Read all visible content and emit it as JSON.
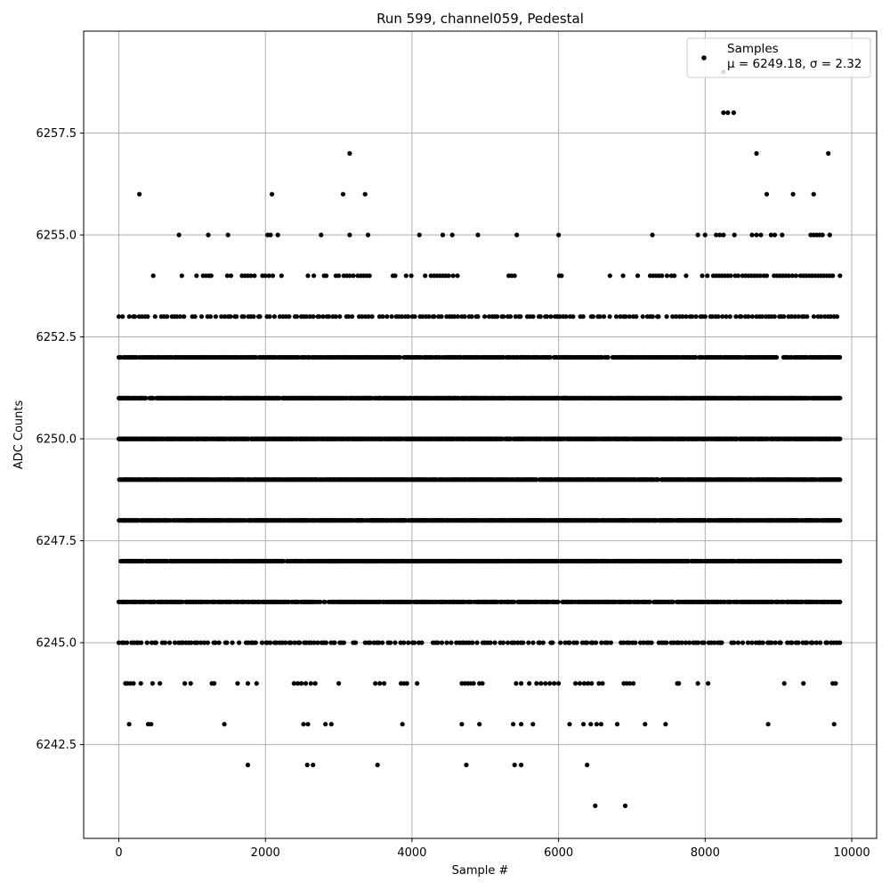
{
  "chart_data": {
    "type": "scatter",
    "title": "Run 599, channel059, Pedestal",
    "xlabel": "Sample #",
    "ylabel": "ADC Counts",
    "xlim": [
      -480,
      10340
    ],
    "ylim": [
      6240.2,
      6260.0
    ],
    "xticks": [
      0,
      2000,
      4000,
      6000,
      8000,
      10000
    ],
    "xtick_labels": [
      "0",
      "2000",
      "4000",
      "6000",
      "8000",
      "10000"
    ],
    "yticks": [
      6242.5,
      6245.0,
      6247.5,
      6250.0,
      6252.5,
      6255.0,
      6257.5
    ],
    "ytick_labels": [
      "6242.5",
      "6245.0",
      "6247.5",
      "6250.0",
      "6252.5",
      "6255.0",
      "6257.5"
    ],
    "grid": true,
    "legend": {
      "placement": "top-right",
      "entries": [
        "Samples",
        "μ = 6249.18, σ = 2.32"
      ]
    },
    "marker_color": "#000000",
    "series": [
      {
        "name": "Samples",
        "x_range": [
          0,
          9840
        ],
        "dense_levels": [
          {
            "y": 6245,
            "from": 0,
            "to": 9840,
            "step": 40
          },
          {
            "y": 6246,
            "from": 0,
            "to": 9840,
            "step": 16
          },
          {
            "y": 6247,
            "from": 0,
            "to": 9840,
            "step": 12
          },
          {
            "y": 6248,
            "from": 0,
            "to": 9840,
            "step": 10
          },
          {
            "y": 6249,
            "from": 0,
            "to": 9840,
            "step": 10
          },
          {
            "y": 6250,
            "from": 0,
            "to": 9840,
            "step": 10
          },
          {
            "y": 6251,
            "from": 0,
            "to": 9840,
            "step": 10
          },
          {
            "y": 6252,
            "from": 0,
            "to": 9840,
            "step": 16
          },
          {
            "y": 6253,
            "from": 0,
            "to": 9840,
            "step": 45
          }
        ],
        "points": [
          {
            "x": 280,
            "y": 6256
          },
          {
            "x": 2090,
            "y": 6256
          },
          {
            "x": 3060,
            "y": 6256
          },
          {
            "x": 3360,
            "y": 6256
          },
          {
            "x": 8840,
            "y": 6256
          },
          {
            "x": 9200,
            "y": 6256
          },
          {
            "x": 9480,
            "y": 6256
          },
          {
            "x": 3150,
            "y": 6257
          },
          {
            "x": 8700,
            "y": 6257
          },
          {
            "x": 9680,
            "y": 6257
          },
          {
            "x": 8250,
            "y": 6258
          },
          {
            "x": 8310,
            "y": 6258
          },
          {
            "x": 8390,
            "y": 6258
          },
          {
            "x": 8250,
            "y": 6259
          },
          {
            "x": 820,
            "y": 6255
          },
          {
            "x": 1220,
            "y": 6255
          },
          {
            "x": 1490,
            "y": 6255
          },
          {
            "x": 2030,
            "y": 6255
          },
          {
            "x": 2070,
            "y": 6255
          },
          {
            "x": 2170,
            "y": 6255
          },
          {
            "x": 2760,
            "y": 6255
          },
          {
            "x": 3150,
            "y": 6255
          },
          {
            "x": 3400,
            "y": 6255
          },
          {
            "x": 4100,
            "y": 6255
          },
          {
            "x": 4420,
            "y": 6255
          },
          {
            "x": 4550,
            "y": 6255
          },
          {
            "x": 4900,
            "y": 6255
          },
          {
            "x": 5430,
            "y": 6255
          },
          {
            "x": 6000,
            "y": 6255
          },
          {
            "x": 7280,
            "y": 6255
          },
          {
            "x": 7900,
            "y": 6255
          },
          {
            "x": 8000,
            "y": 6255
          },
          {
            "x": 8150,
            "y": 6255
          },
          {
            "x": 8200,
            "y": 6255
          },
          {
            "x": 8250,
            "y": 6255
          },
          {
            "x": 8400,
            "y": 6255
          },
          {
            "x": 8640,
            "y": 6255
          },
          {
            "x": 8700,
            "y": 6255
          },
          {
            "x": 8760,
            "y": 6255
          },
          {
            "x": 8900,
            "y": 6255
          },
          {
            "x": 8950,
            "y": 6255
          },
          {
            "x": 9050,
            "y": 6255
          },
          {
            "x": 9440,
            "y": 6255
          },
          {
            "x": 9480,
            "y": 6255
          },
          {
            "x": 9520,
            "y": 6255
          },
          {
            "x": 9560,
            "y": 6255
          },
          {
            "x": 9600,
            "y": 6255
          },
          {
            "x": 9700,
            "y": 6255
          },
          {
            "x": 140,
            "y": 6243
          },
          {
            "x": 400,
            "y": 6243
          },
          {
            "x": 440,
            "y": 6243
          },
          {
            "x": 1440,
            "y": 6243
          },
          {
            "x": 2520,
            "y": 6243
          },
          {
            "x": 2580,
            "y": 6243
          },
          {
            "x": 2820,
            "y": 6243
          },
          {
            "x": 2900,
            "y": 6243
          },
          {
            "x": 3870,
            "y": 6243
          },
          {
            "x": 4680,
            "y": 6243
          },
          {
            "x": 4920,
            "y": 6243
          },
          {
            "x": 5380,
            "y": 6243
          },
          {
            "x": 5490,
            "y": 6243
          },
          {
            "x": 5650,
            "y": 6243
          },
          {
            "x": 6150,
            "y": 6243
          },
          {
            "x": 6340,
            "y": 6243
          },
          {
            "x": 6440,
            "y": 6243
          },
          {
            "x": 6520,
            "y": 6243
          },
          {
            "x": 6580,
            "y": 6243
          },
          {
            "x": 6800,
            "y": 6243
          },
          {
            "x": 7180,
            "y": 6243
          },
          {
            "x": 7460,
            "y": 6243
          },
          {
            "x": 8860,
            "y": 6243
          },
          {
            "x": 9760,
            "y": 6243
          },
          {
            "x": 1760,
            "y": 6242
          },
          {
            "x": 2570,
            "y": 6242
          },
          {
            "x": 2650,
            "y": 6242
          },
          {
            "x": 3530,
            "y": 6242
          },
          {
            "x": 4740,
            "y": 6242
          },
          {
            "x": 5400,
            "y": 6242
          },
          {
            "x": 5490,
            "y": 6242
          },
          {
            "x": 6390,
            "y": 6242
          },
          {
            "x": 6500,
            "y": 6241
          },
          {
            "x": 6910,
            "y": 6241
          }
        ],
        "sparse_levels": [
          {
            "y": 6254,
            "x": [
              470,
              860,
              1060,
              1150,
              1190,
              1230,
              1260,
              1480,
              1530,
              1680,
              1720,
              1760,
              1800,
              1850,
              1960,
              2000,
              2050,
              2100,
              2220,
              2580,
              2660,
              2800,
              2830,
              2960,
              3000,
              3070,
              3110,
              3150,
              3200,
              3260,
              3300,
              3340,
              3380,
              3420,
              3740,
              3770,
              3920,
              3990,
              4180,
              4260,
              4300,
              4340,
              4380,
              4420,
              4460,
              4500,
              4560,
              4620,
              5320,
              5360,
              5400,
              6010,
              6040,
              6700,
              6880,
              7080,
              7250,
              7290,
              7330,
              7370,
              7410,
              7480,
              7540,
              7580,
              7740,
              7960,
              8030,
              8110,
              8150,
              8190,
              8230,
              8270,
              8310,
              8350,
              8410,
              8450,
              8510,
              8550,
              8590,
              8630,
              8670,
              8710,
              8750,
              8800,
              8840,
              8940,
              8980,
              9020,
              9060,
              9100,
              9140,
              9190,
              9240,
              9300,
              9340,
              9380,
              9420,
              9460,
              9500,
              9540,
              9580,
              9620,
              9660,
              9700,
              9740,
              9840
            ]
          },
          {
            "y": 6244,
            "x": [
              90,
              120,
              160,
              200,
              300,
              460,
              560,
              900,
              980,
              1270,
              1300,
              1620,
              1760,
              1880,
              2390,
              2440,
              2490,
              2550,
              2620,
              2680,
              3000,
              3500,
              3560,
              3620,
              3850,
              3890,
              3930,
              4070,
              4680,
              4720,
              4760,
              4800,
              4840,
              4920,
              4960,
              5420,
              5490,
              5600,
              5700,
              5760,
              5820,
              5880,
              5940,
              6000,
              6230,
              6290,
              6350,
              6400,
              6450,
              6550,
              6600,
              6890,
              6930,
              6970,
              7020,
              7620,
              7640,
              7900,
              8040,
              9080,
              9340,
              9740,
              9780
            ]
          }
        ]
      }
    ]
  }
}
